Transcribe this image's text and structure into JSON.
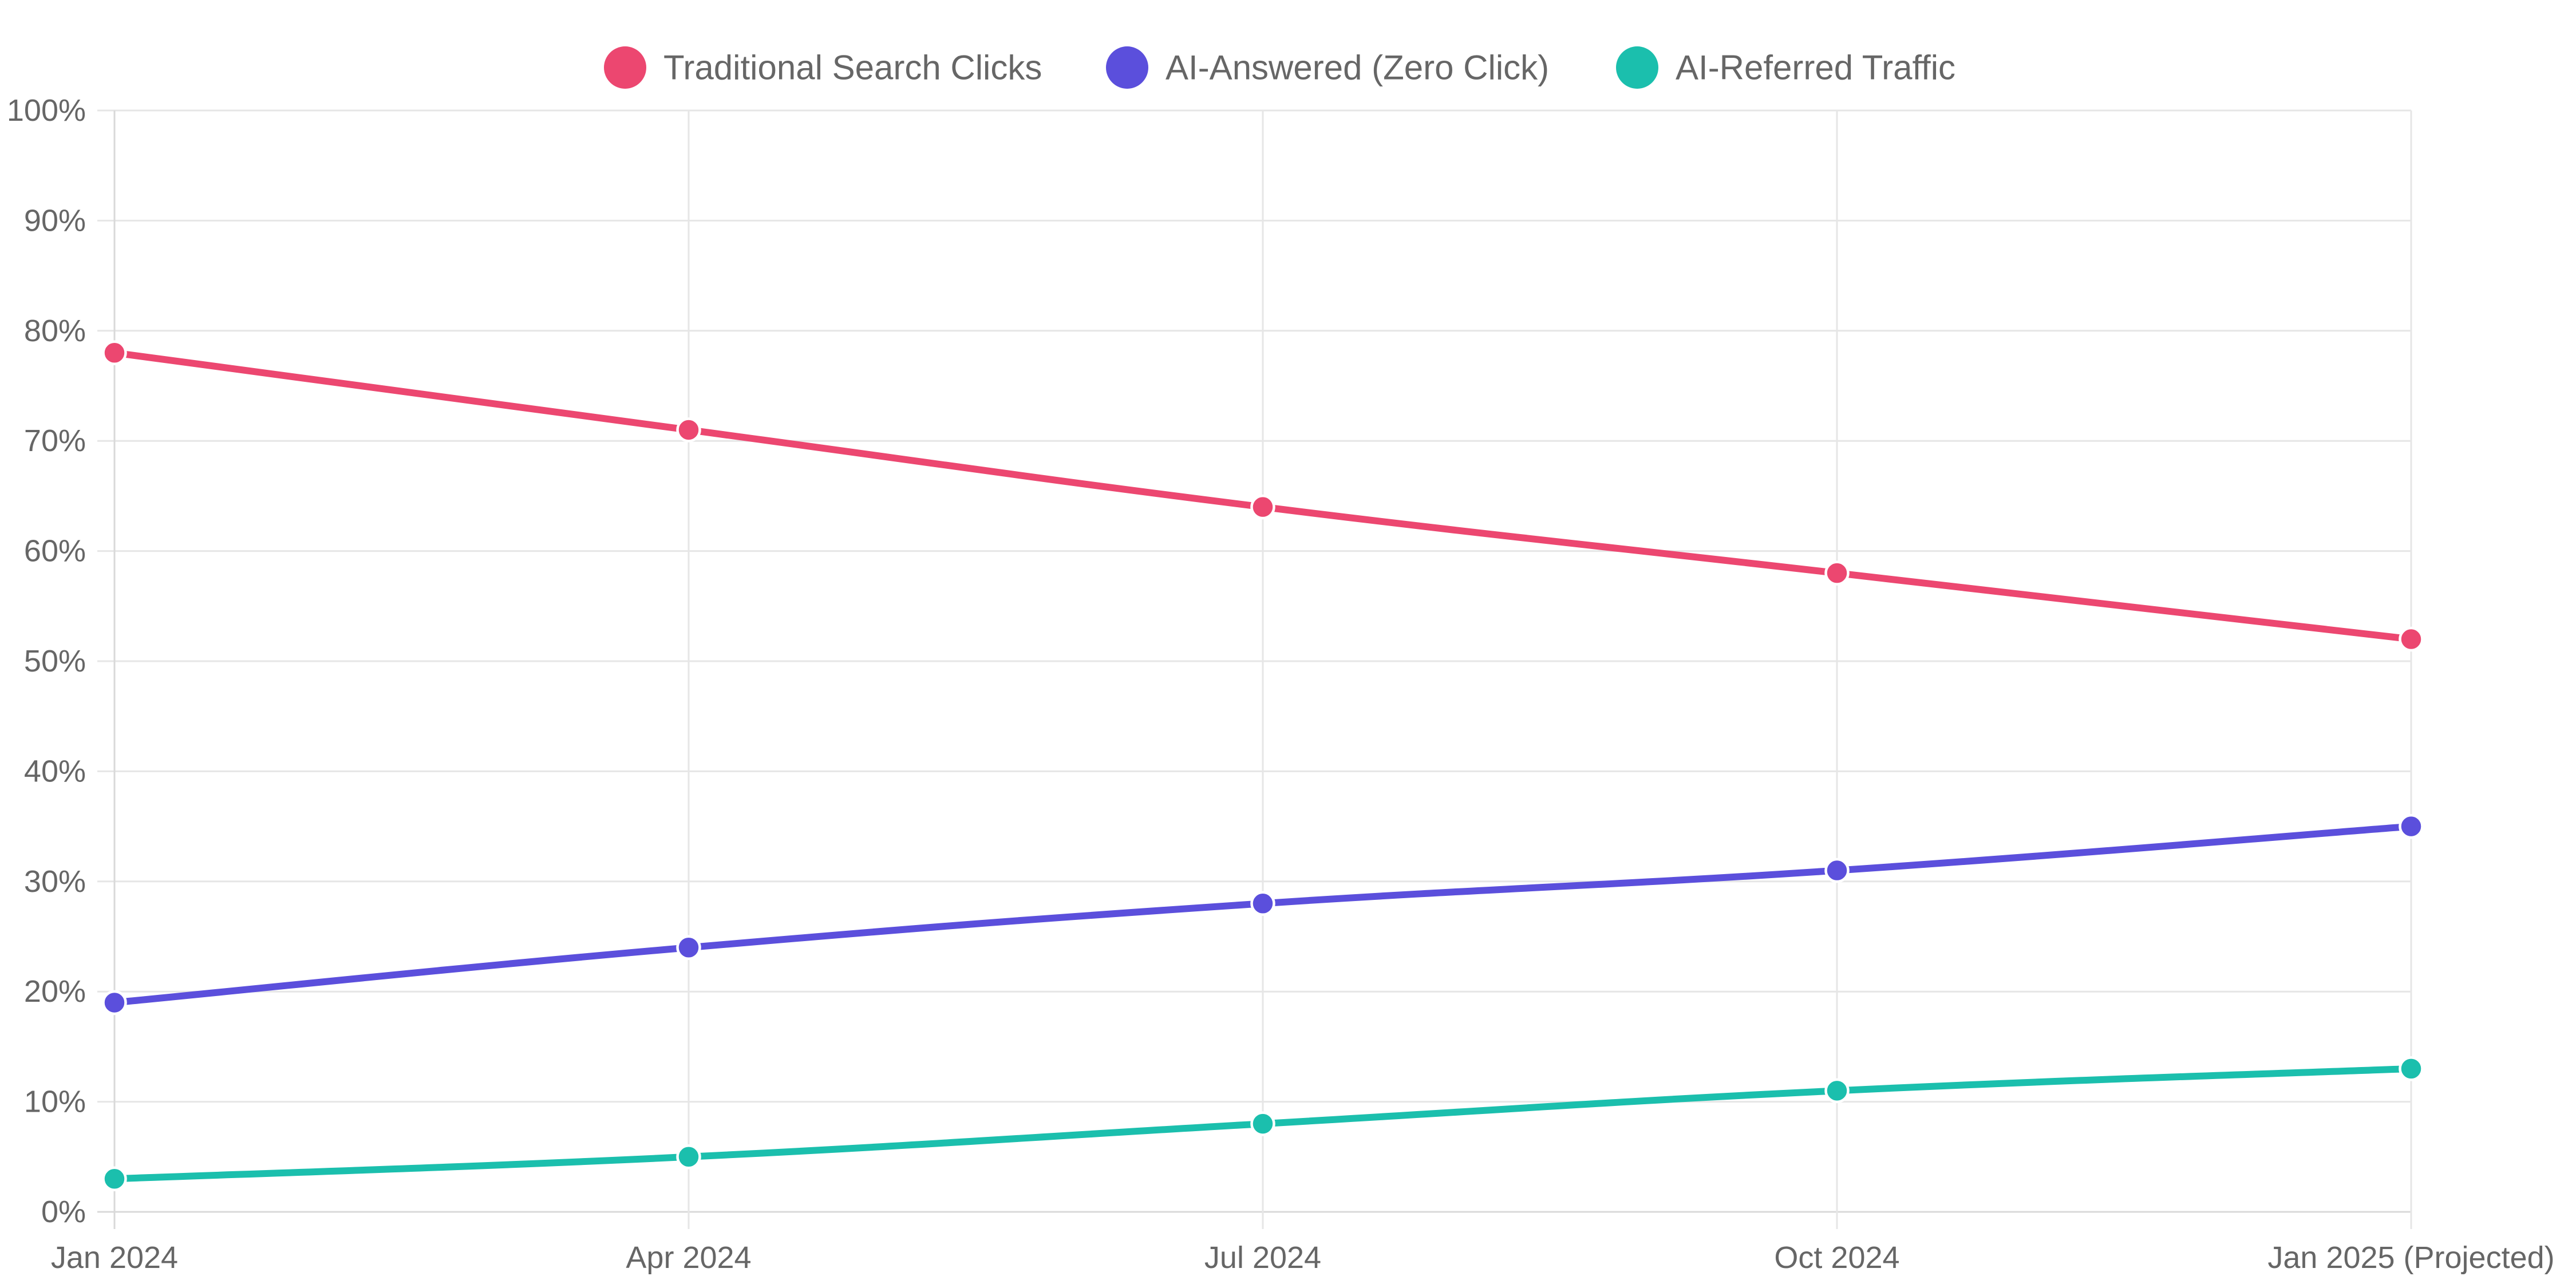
{
  "chart_data": {
    "type": "line",
    "categories": [
      "Jan 2024",
      "Apr 2024",
      "Jul 2024",
      "Oct 2024",
      "Jan 2025 (Projected)"
    ],
    "series": [
      {
        "name": "Traditional Search Clicks",
        "color": "#ec4770",
        "values": [
          78,
          71,
          64,
          58,
          52
        ]
      },
      {
        "name": "AI-Answered (Zero Click)",
        "color": "#5b4fdc",
        "values": [
          19,
          24,
          28,
          31,
          35
        ]
      },
      {
        "name": "AI-Referred Traffic",
        "color": "#1bbfad",
        "values": [
          3,
          5,
          8,
          11,
          13
        ]
      }
    ],
    "ylim": [
      0,
      100
    ],
    "y_tick_labels": [
      "0%",
      "10%",
      "20%",
      "30%",
      "40%",
      "50%",
      "60%",
      "70%",
      "80%",
      "90%",
      "100%"
    ],
    "grid": true,
    "legend_position": "top-center"
  }
}
